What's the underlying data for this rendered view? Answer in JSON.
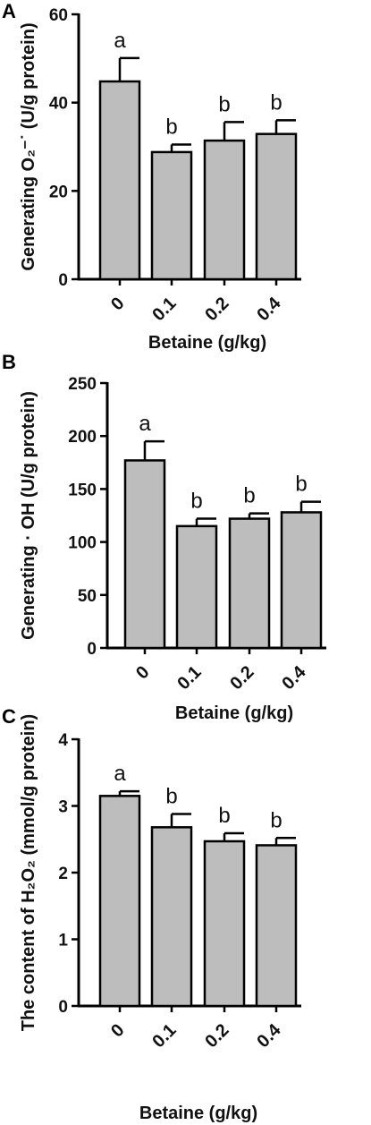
{
  "chart_data": [
    {
      "panel": "A",
      "type": "bar",
      "categories": [
        "0",
        "0.1",
        "0.2",
        "0.4"
      ],
      "values": [
        44.8,
        28.8,
        31.4,
        32.9
      ],
      "errors": [
        5.3,
        1.7,
        4.2,
        3.1
      ],
      "significance": [
        "a",
        "b",
        "b",
        "b"
      ],
      "xlabel": "Betaine (g/kg)",
      "ylabel": "Generating O₂⁻˙ (U/g protein)",
      "ylim": [
        0,
        60
      ],
      "yticks": [
        "0",
        "20",
        "40",
        "60"
      ],
      "grid": false
    },
    {
      "panel": "B",
      "type": "bar",
      "categories": [
        "0",
        "0.1",
        "0.2",
        "0.4"
      ],
      "values": [
        177,
        115,
        122,
        128
      ],
      "errors": [
        18,
        7,
        5,
        10
      ],
      "significance": [
        "a",
        "b",
        "b",
        "b"
      ],
      "xlabel": "Betaine (g/kg)",
      "ylabel": "Generating · OH (U/g protein)",
      "ylim": [
        0,
        250
      ],
      "yticks": [
        "0",
        "50",
        "100",
        "150",
        "200",
        "250"
      ],
      "grid": false
    },
    {
      "panel": "C",
      "type": "bar",
      "categories": [
        "0",
        "0.1",
        "0.2",
        "0.4"
      ],
      "values": [
        3.15,
        2.68,
        2.47,
        2.41
      ],
      "errors": [
        0.07,
        0.2,
        0.12,
        0.11
      ],
      "significance": [
        "a",
        "b",
        "b",
        "b"
      ],
      "xlabel": "Betaine (g/kg)",
      "ylabel": "The content of H₂O₂ (mmol/g protein)",
      "ylim": [
        0,
        4
      ],
      "yticks": [
        "0",
        "1",
        "2",
        "3",
        "4"
      ],
      "grid": false
    }
  ]
}
